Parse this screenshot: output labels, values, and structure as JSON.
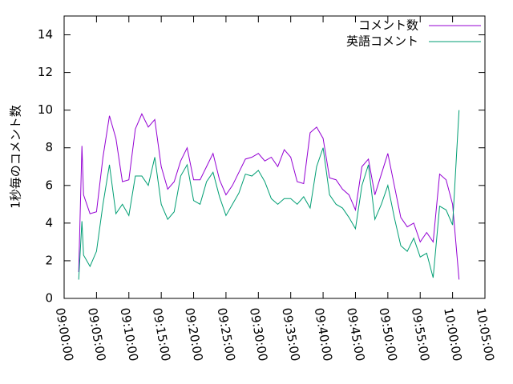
{
  "chart_data": {
    "type": "line",
    "y_label": "1秒毎のコメント数",
    "x": [
      "09:02:15",
      "09:02:45",
      "09:03:00",
      "09:04:00",
      "09:05:00",
      "09:06:00",
      "09:07:00",
      "09:08:00",
      "09:09:00",
      "09:10:00",
      "09:11:00",
      "09:12:00",
      "09:13:00",
      "09:14:00",
      "09:15:00",
      "09:16:00",
      "09:17:00",
      "09:18:00",
      "09:19:00",
      "09:20:00",
      "09:21:00",
      "09:22:00",
      "09:23:00",
      "09:24:00",
      "09:25:00",
      "09:26:00",
      "09:27:00",
      "09:28:00",
      "09:29:00",
      "09:30:00",
      "09:31:00",
      "09:32:00",
      "09:33:00",
      "09:34:00",
      "09:35:00",
      "09:36:00",
      "09:37:00",
      "09:38:00",
      "09:39:00",
      "09:40:00",
      "09:41:00",
      "09:42:00",
      "09:43:00",
      "09:44:00",
      "09:45:00",
      "09:46:00",
      "09:47:00",
      "09:48:00",
      "09:49:00",
      "09:50:00",
      "09:51:00",
      "09:52:00",
      "09:53:00",
      "09:54:00",
      "09:55:00",
      "09:56:00",
      "09:57:00",
      "09:58:00",
      "09:59:00",
      "10:00:00",
      "10:01:00"
    ],
    "series": [
      {
        "name": "コメント数",
        "color": "#9400d3",
        "values": [
          1.4,
          8.1,
          5.5,
          4.5,
          4.6,
          7.5,
          9.7,
          8.5,
          6.2,
          6.3,
          9.0,
          9.8,
          9.1,
          9.5,
          7.0,
          5.8,
          6.2,
          7.3,
          8.0,
          6.3,
          6.3,
          7.0,
          7.7,
          6.3,
          5.5,
          6.0,
          6.7,
          7.4,
          7.5,
          7.7,
          7.3,
          7.5,
          7.0,
          7.9,
          7.5,
          6.2,
          6.1,
          8.8,
          9.1,
          8.5,
          6.4,
          6.3,
          5.8,
          5.5,
          4.7,
          7.0,
          7.4,
          5.5,
          6.6,
          7.7,
          6.0,
          4.3,
          3.8,
          4.0,
          3.0,
          3.5,
          3.0,
          6.6,
          6.3,
          5.0,
          1.0
        ]
      },
      {
        "name": "英語コメント",
        "color": "#009e73",
        "values": [
          1.0,
          4.1,
          2.3,
          1.7,
          2.5,
          5.0,
          7.1,
          4.5,
          5.0,
          4.4,
          6.5,
          6.5,
          6.0,
          7.5,
          5.0,
          4.2,
          4.6,
          6.5,
          7.1,
          5.2,
          5.0,
          6.2,
          6.7,
          5.4,
          4.4,
          5.0,
          5.6,
          6.6,
          6.5,
          6.8,
          6.2,
          5.3,
          5.0,
          5.3,
          5.3,
          5.0,
          5.4,
          4.8,
          7.0,
          8.0,
          5.5,
          5.0,
          4.8,
          4.3,
          3.7,
          6.0,
          7.1,
          4.2,
          5.0,
          6.0,
          4.3,
          2.8,
          2.5,
          3.2,
          2.2,
          2.4,
          1.1,
          4.9,
          4.7,
          3.9,
          10.0
        ]
      }
    ],
    "xlim": [
      "09:00:00",
      "10:05:00"
    ],
    "xticks": [
      "09:00:00",
      "09:05:00",
      "09:10:00",
      "09:15:00",
      "09:20:00",
      "09:25:00",
      "09:30:00",
      "09:35:00",
      "09:40:00",
      "09:45:00",
      "09:50:00",
      "09:55:00",
      "10:00:00",
      "10:05:00"
    ],
    "ylim": [
      0,
      15
    ],
    "yticks": [
      0,
      2,
      4,
      6,
      8,
      10,
      12,
      14
    ],
    "legend": "top-right",
    "grid": false
  }
}
